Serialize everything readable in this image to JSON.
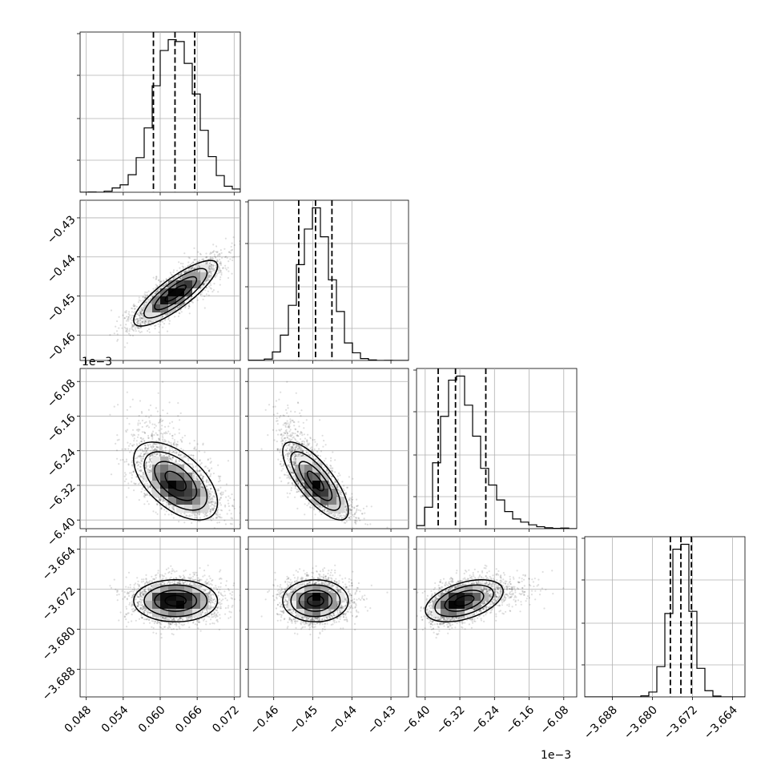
{
  "chart_data": {
    "type": "corner",
    "variables": [
      {
        "id": "p0",
        "range": [
          0.047,
          0.073
        ],
        "ticks": [
          0.048,
          0.054,
          0.06,
          0.066,
          0.072
        ],
        "tick_labels": [
          "0.048",
          "0.054",
          "0.060",
          "0.066",
          "0.072"
        ],
        "offset_text": "",
        "mean": 0.0625,
        "sd": 0.0034,
        "skew": 0,
        "quantiles": [
          0.0589,
          0.0624,
          0.0656
        ]
      },
      {
        "id": "p1",
        "range": [
          -0.4665,
          -0.4255
        ],
        "ticks": [
          -0.46,
          -0.45,
          -0.44,
          -0.43
        ],
        "tick_labels": [
          "−0.46",
          "−0.45",
          "−0.44",
          "−0.43"
        ],
        "offset_text": "",
        "mean": -0.4493,
        "sd": 0.0042,
        "skew": 0,
        "quantiles": [
          -0.4536,
          -0.4493,
          -0.4451
        ]
      },
      {
        "id": "p2",
        "range": [
          -6.42,
          -6.05
        ],
        "ticks": [
          -6.4,
          -6.32,
          -6.24,
          -6.16,
          -6.08
        ],
        "tick_labels": [
          "−6.40",
          "−6.32",
          "−6.24",
          "−6.16",
          "−6.08"
        ],
        "offset_text": "1e−3",
        "mean": -6.31,
        "sd": 0.045,
        "skew": 0.65,
        "quantiles": [
          -6.37,
          -6.33,
          -6.26
        ]
      },
      {
        "id": "p3",
        "range": [
          -3.6935,
          -3.6615
        ],
        "ticks": [
          -3.688,
          -3.68,
          -3.672,
          -3.664
        ],
        "tick_labels": [
          "−3.688",
          "−3.680",
          "−3.672",
          "−3.664"
        ],
        "offset_text": "",
        "mean": -3.6743,
        "sd": 0.0021,
        "skew": 0,
        "quantiles": [
          -3.6764,
          -3.6743,
          -3.6722
        ]
      }
    ],
    "correlations": [
      {
        "pair": [
          0,
          1
        ],
        "rho": 0.83
      },
      {
        "pair": [
          0,
          2
        ],
        "rho": -0.55
      },
      {
        "pair": [
          1,
          2
        ],
        "rho": -0.76
      },
      {
        "pair": [
          0,
          3
        ],
        "rho": 0.0
      },
      {
        "pair": [
          1,
          3
        ],
        "rho": 0.0
      },
      {
        "pair": [
          2,
          3
        ],
        "rho": 0.45
      }
    ],
    "contour_levels_sigma": [
      0.5,
      1.0,
      1.5,
      2.0
    ],
    "grid": true,
    "legend": "none"
  }
}
